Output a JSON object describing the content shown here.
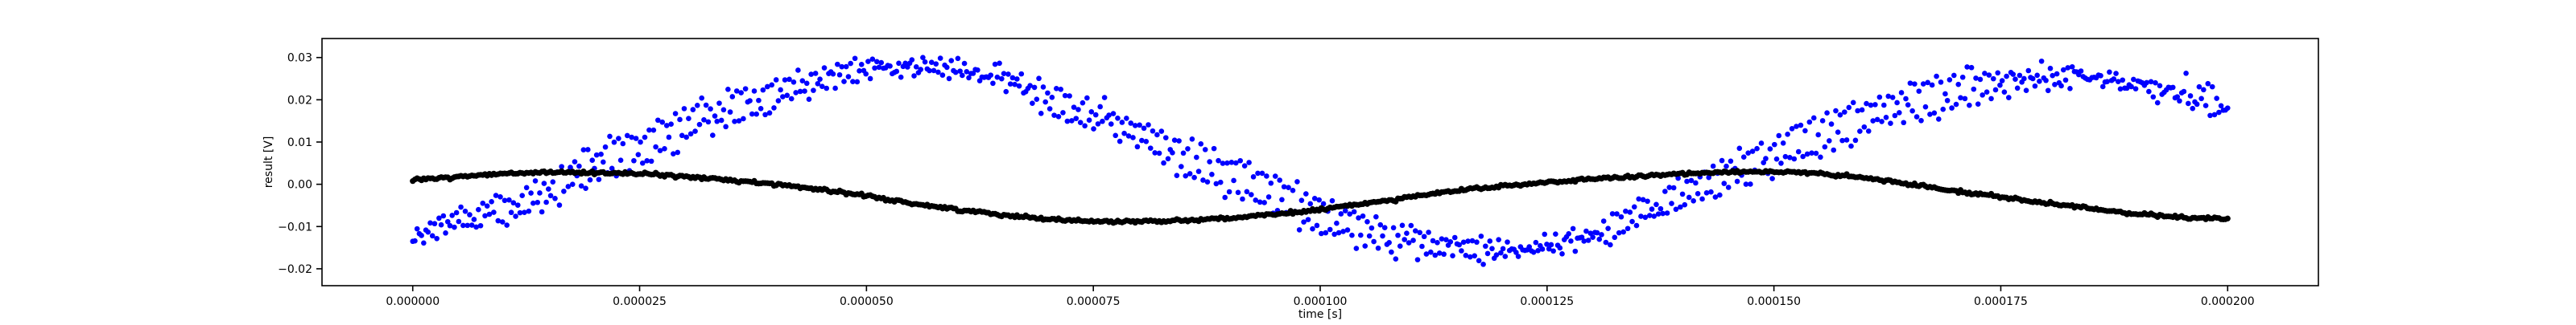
{
  "chart_data": {
    "type": "scatter",
    "title": "",
    "xlabel": "time [s]",
    "ylabel": "result [V]",
    "xlim": [
      -1e-05,
      0.00021
    ],
    "ylim": [
      -0.024,
      0.0345
    ],
    "x_ticks": [
      0,
      2.5e-05,
      5e-05,
      7.5e-05,
      0.0001,
      0.000125,
      0.00015,
      0.000175,
      0.0002
    ],
    "x_tick_labels": [
      "0.000000",
      "0.000025",
      "0.000050",
      "0.000075",
      "0.000100",
      "0.000125",
      "0.000150",
      "0.000175",
      "0.000200"
    ],
    "y_ticks": [
      -0.02,
      -0.01,
      0.0,
      0.01,
      0.02,
      0.03
    ],
    "y_tick_labels": [
      "−0.02",
      "−0.01",
      "0.00",
      "0.01",
      "0.02",
      "0.03"
    ],
    "grid": false,
    "legend": "none",
    "series": [
      {
        "color": "#0000ff",
        "marker": "dot",
        "x_start": 0,
        "x_end": 0.0002,
        "points": [
          [
            0.0,
            -0.013
          ],
          [
            2.5e-06,
            -0.011
          ],
          [
            5e-06,
            -0.0085
          ],
          [
            7.5e-06,
            -0.0065
          ],
          [
            1e-05,
            -0.006
          ],
          [
            1.25e-05,
            -0.0045
          ],
          [
            1.5e-05,
            -0.002
          ],
          [
            1.75e-05,
            0.002
          ],
          [
            2e-05,
            0.0045
          ],
          [
            2.25e-05,
            0.006
          ],
          [
            2.5e-05,
            0.008
          ],
          [
            2.75e-05,
            0.011
          ],
          [
            3e-05,
            0.014
          ],
          [
            3.25e-05,
            0.016
          ],
          [
            3.5e-05,
            0.018
          ],
          [
            3.75e-05,
            0.0195
          ],
          [
            4e-05,
            0.022
          ],
          [
            4.25e-05,
            0.024
          ],
          [
            4.5e-05,
            0.025
          ],
          [
            4.75e-05,
            0.026
          ],
          [
            5e-05,
            0.0275
          ],
          [
            5.25e-05,
            0.028
          ],
          [
            5.5e-05,
            0.028
          ],
          [
            5.75e-05,
            0.0275
          ],
          [
            6e-05,
            0.027
          ],
          [
            6.25e-05,
            0.026
          ],
          [
            6.5e-05,
            0.025
          ],
          [
            6.75e-05,
            0.023
          ],
          [
            7e-05,
            0.021
          ],
          [
            7.25e-05,
            0.0185
          ],
          [
            7.5e-05,
            0.016
          ],
          [
            7.75e-05,
            0.014
          ],
          [
            8e-05,
            0.012
          ],
          [
            8.25e-05,
            0.009
          ],
          [
            8.5e-05,
            0.0065
          ],
          [
            8.75e-05,
            0.004
          ],
          [
            9e-05,
            0.002
          ],
          [
            9.25e-05,
            0.0005
          ],
          [
            9.5e-05,
            -0.0025
          ],
          [
            9.75e-05,
            -0.005
          ],
          [
            0.0001,
            -0.007
          ],
          [
            0.0001025,
            -0.009
          ],
          [
            0.000105,
            -0.0105
          ],
          [
            0.0001075,
            -0.012
          ],
          [
            0.00011,
            -0.013
          ],
          [
            0.0001125,
            -0.0145
          ],
          [
            0.000115,
            -0.015
          ],
          [
            0.0001175,
            -0.0155
          ],
          [
            0.00012,
            -0.0155
          ],
          [
            0.0001225,
            -0.015
          ],
          [
            0.000125,
            -0.0145
          ],
          [
            0.0001275,
            -0.0135
          ],
          [
            0.00013,
            -0.012
          ],
          [
            0.0001325,
            -0.0095
          ],
          [
            0.000135,
            -0.0075
          ],
          [
            0.0001375,
            -0.005
          ],
          [
            0.00014,
            -0.0025
          ],
          [
            0.0001425,
            0.0
          ],
          [
            0.000145,
            0.0025
          ],
          [
            0.0001475,
            0.0045
          ],
          [
            0.00015,
            0.007
          ],
          [
            0.0001525,
            0.0095
          ],
          [
            0.000155,
            0.0115
          ],
          [
            0.0001575,
            0.0135
          ],
          [
            0.00016,
            0.0155
          ],
          [
            0.0001625,
            0.0175
          ],
          [
            0.000165,
            0.019
          ],
          [
            0.0001675,
            0.021
          ],
          [
            0.00017,
            0.022
          ],
          [
            0.0001725,
            0.0235
          ],
          [
            0.000175,
            0.024
          ],
          [
            0.0001775,
            0.0245
          ],
          [
            0.00018,
            0.025
          ],
          [
            0.0001825,
            0.0255
          ],
          [
            0.000185,
            0.025
          ],
          [
            0.0001875,
            0.0245
          ],
          [
            0.00019,
            0.0235
          ],
          [
            0.0001925,
            0.0225
          ],
          [
            0.000195,
            0.0215
          ],
          [
            0.0001975,
            0.0205
          ],
          [
            0.0002,
            0.019
          ]
        ]
      },
      {
        "color": "#000000",
        "marker": "dot",
        "x_start": 0,
        "x_end": 0.0002,
        "points": [
          [
            0.0,
            0.001
          ],
          [
            5e-06,
            0.0018
          ],
          [
            1e-05,
            0.0025
          ],
          [
            1.5e-05,
            0.0028
          ],
          [
            2e-05,
            0.0028
          ],
          [
            2.5e-05,
            0.0025
          ],
          [
            3e-05,
            0.0018
          ],
          [
            3.5e-05,
            0.001
          ],
          [
            4e-05,
            0.0
          ],
          [
            4.5e-05,
            -0.0012
          ],
          [
            5e-05,
            -0.0028
          ],
          [
            5.5e-05,
            -0.0045
          ],
          [
            6e-05,
            -0.006
          ],
          [
            6.5e-05,
            -0.0072
          ],
          [
            7e-05,
            -0.0082
          ],
          [
            7.5e-05,
            -0.0088
          ],
          [
            8e-05,
            -0.0088
          ],
          [
            8.5e-05,
            -0.0085
          ],
          [
            9e-05,
            -0.008
          ],
          [
            9.5e-05,
            -0.0072
          ],
          [
            0.0001,
            -0.006
          ],
          [
            0.000105,
            -0.0045
          ],
          [
            0.00011,
            -0.003
          ],
          [
            0.000115,
            -0.0015
          ],
          [
            0.00012,
            -0.0005
          ],
          [
            0.000125,
            0.0005
          ],
          [
            0.00013,
            0.0012
          ],
          [
            0.000135,
            0.0018
          ],
          [
            0.00014,
            0.0025
          ],
          [
            0.000145,
            0.003
          ],
          [
            0.00015,
            0.003
          ],
          [
            0.000155,
            0.0025
          ],
          [
            0.00016,
            0.0015
          ],
          [
            0.000165,
            0.0
          ],
          [
            0.00017,
            -0.0015
          ],
          [
            0.000175,
            -0.003
          ],
          [
            0.00018,
            -0.0045
          ],
          [
            0.000185,
            -0.0058
          ],
          [
            0.00019,
            -0.007
          ],
          [
            0.000195,
            -0.0078
          ],
          [
            0.0002,
            -0.0082
          ]
        ]
      }
    ]
  }
}
